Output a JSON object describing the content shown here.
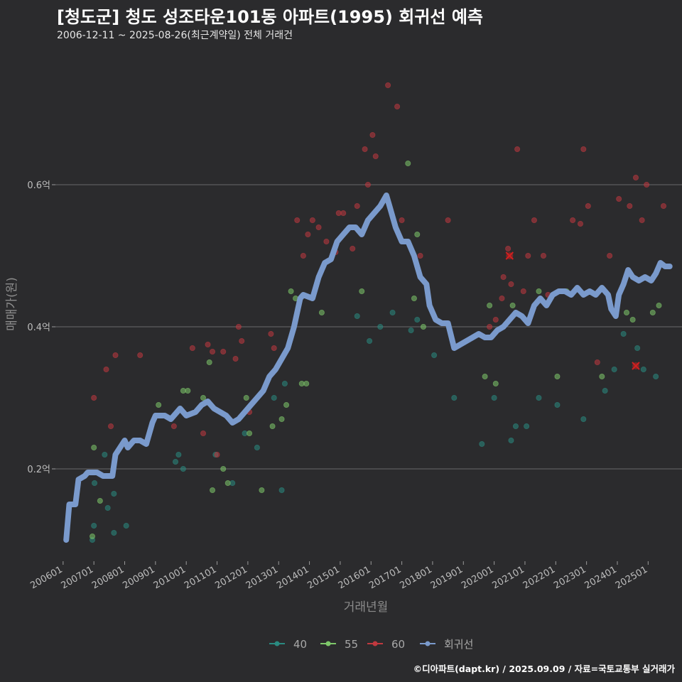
{
  "header": {
    "title": "[청도군] 청도 성조타운101동 아파트(1995) 회귀선 예측",
    "subtitle": "2006-12-11 ~ 2025-08-26(최근계약일) 전체 거래건"
  },
  "caption": "©디아파트(dapt.kr) / 2025.09.09 / 자료=국토교통부 실거래가",
  "colors": {
    "s40": "#2a8a80",
    "s55": "#7ec86a",
    "s60": "#c0393f",
    "reg": "#7a9acc",
    "grid": "#6a6a6a",
    "marker": "#d21f1f"
  },
  "chart_data": {
    "type": "scatter",
    "title": "[청도군] 청도 성조타운101동 아파트(1995) 회귀선 예측",
    "xlabel": "거래년월",
    "ylabel": "매매가(원)",
    "xlim": [
      2005.75,
      2026.1
    ],
    "ylim": [
      0.07,
      0.79
    ],
    "x_ticks": [
      {
        "v": 2006.0,
        "label": "200601"
      },
      {
        "v": 2007.0,
        "label": "200701"
      },
      {
        "v": 2008.0,
        "label": "200801"
      },
      {
        "v": 2009.0,
        "label": "200901"
      },
      {
        "v": 2010.0,
        "label": "201001"
      },
      {
        "v": 2011.0,
        "label": "201101"
      },
      {
        "v": 2012.0,
        "label": "201201"
      },
      {
        "v": 2013.0,
        "label": "201301"
      },
      {
        "v": 2014.0,
        "label": "201401"
      },
      {
        "v": 2015.0,
        "label": "201501"
      },
      {
        "v": 2016.0,
        "label": "201601"
      },
      {
        "v": 2017.0,
        "label": "201701"
      },
      {
        "v": 2018.0,
        "label": "201801"
      },
      {
        "v": 2019.0,
        "label": "201901"
      },
      {
        "v": 2020.0,
        "label": "202001"
      },
      {
        "v": 2021.0,
        "label": "202101"
      },
      {
        "v": 2022.0,
        "label": "202201"
      },
      {
        "v": 2023.0,
        "label": "202301"
      },
      {
        "v": 2024.0,
        "label": "202401"
      },
      {
        "v": 2025.0,
        "label": "202501"
      }
    ],
    "y_ticks": [
      {
        "v": 0.2,
        "label": "0.2억"
      },
      {
        "v": 0.4,
        "label": "0.4억"
      },
      {
        "v": 0.6,
        "label": "0.6억"
      }
    ],
    "legend": [
      {
        "key": "s40",
        "label": "40"
      },
      {
        "key": "s55",
        "label": "55"
      },
      {
        "key": "s60",
        "label": "60"
      },
      {
        "key": "reg",
        "label": "회귀선"
      }
    ],
    "series": [
      {
        "name": "40",
        "key": "s40",
        "points": [
          [
            2006.95,
            0.1
          ],
          [
            2007.0,
            0.12
          ],
          [
            2007.02,
            0.18
          ],
          [
            2007.35,
            0.22
          ],
          [
            2007.45,
            0.145
          ],
          [
            2007.65,
            0.165
          ],
          [
            2007.65,
            0.11
          ],
          [
            2008.05,
            0.12
          ],
          [
            2009.65,
            0.21
          ],
          [
            2009.75,
            0.22
          ],
          [
            2009.9,
            0.2
          ],
          [
            2010.95,
            0.22
          ],
          [
            2011.5,
            0.18
          ],
          [
            2011.9,
            0.25
          ],
          [
            2012.3,
            0.23
          ],
          [
            2012.85,
            0.3
          ],
          [
            2013.1,
            0.17
          ],
          [
            2013.2,
            0.32
          ],
          [
            2015.55,
            0.415
          ],
          [
            2015.95,
            0.38
          ],
          [
            2016.3,
            0.4
          ],
          [
            2016.7,
            0.42
          ],
          [
            2017.3,
            0.395
          ],
          [
            2017.5,
            0.41
          ],
          [
            2018.05,
            0.36
          ],
          [
            2018.7,
            0.3
          ],
          [
            2019.6,
            0.235
          ],
          [
            2020.0,
            0.3
          ],
          [
            2020.55,
            0.24
          ],
          [
            2020.7,
            0.26
          ],
          [
            2021.05,
            0.26
          ],
          [
            2021.45,
            0.3
          ],
          [
            2022.05,
            0.29
          ],
          [
            2022.9,
            0.27
          ],
          [
            2023.6,
            0.31
          ],
          [
            2023.9,
            0.34
          ],
          [
            2024.2,
            0.39
          ],
          [
            2024.65,
            0.37
          ],
          [
            2024.85,
            0.34
          ],
          [
            2025.25,
            0.33
          ]
        ]
      },
      {
        "name": "55",
        "key": "s55",
        "points": [
          [
            2006.95,
            0.105
          ],
          [
            2007.0,
            0.23
          ],
          [
            2007.2,
            0.155
          ],
          [
            2009.1,
            0.29
          ],
          [
            2009.9,
            0.31
          ],
          [
            2010.05,
            0.31
          ],
          [
            2010.55,
            0.3
          ],
          [
            2010.75,
            0.35
          ],
          [
            2010.85,
            0.17
          ],
          [
            2011.2,
            0.2
          ],
          [
            2011.35,
            0.18
          ],
          [
            2011.95,
            0.3
          ],
          [
            2012.05,
            0.25
          ],
          [
            2012.45,
            0.17
          ],
          [
            2012.8,
            0.26
          ],
          [
            2013.1,
            0.27
          ],
          [
            2013.25,
            0.29
          ],
          [
            2013.4,
            0.45
          ],
          [
            2013.55,
            0.44
          ],
          [
            2013.75,
            0.32
          ],
          [
            2013.9,
            0.32
          ],
          [
            2014.4,
            0.42
          ],
          [
            2015.7,
            0.45
          ],
          [
            2017.2,
            0.63
          ],
          [
            2017.4,
            0.44
          ],
          [
            2017.5,
            0.53
          ],
          [
            2017.7,
            0.4
          ],
          [
            2019.7,
            0.33
          ],
          [
            2019.85,
            0.43
          ],
          [
            2020.05,
            0.32
          ],
          [
            2020.6,
            0.43
          ],
          [
            2021.45,
            0.45
          ],
          [
            2022.05,
            0.33
          ],
          [
            2022.35,
            0.45
          ],
          [
            2023.5,
            0.33
          ],
          [
            2024.3,
            0.42
          ],
          [
            2024.5,
            0.41
          ],
          [
            2025.15,
            0.42
          ],
          [
            2025.35,
            0.43
          ]
        ]
      },
      {
        "name": "60",
        "key": "s60",
        "points": [
          [
            2007.0,
            0.3
          ],
          [
            2007.4,
            0.34
          ],
          [
            2007.55,
            0.26
          ],
          [
            2007.7,
            0.36
          ],
          [
            2008.5,
            0.36
          ],
          [
            2009.6,
            0.26
          ],
          [
            2010.2,
            0.37
          ],
          [
            2010.55,
            0.25
          ],
          [
            2010.7,
            0.375
          ],
          [
            2010.85,
            0.365
          ],
          [
            2011.0,
            0.22
          ],
          [
            2011.2,
            0.365
          ],
          [
            2011.6,
            0.355
          ],
          [
            2011.7,
            0.4
          ],
          [
            2011.8,
            0.38
          ],
          [
            2012.05,
            0.28
          ],
          [
            2012.75,
            0.39
          ],
          [
            2012.85,
            0.37
          ],
          [
            2013.6,
            0.55
          ],
          [
            2013.8,
            0.5
          ],
          [
            2013.95,
            0.53
          ],
          [
            2014.1,
            0.55
          ],
          [
            2014.3,
            0.54
          ],
          [
            2014.55,
            0.52
          ],
          [
            2014.85,
            0.505
          ],
          [
            2014.95,
            0.56
          ],
          [
            2015.1,
            0.56
          ],
          [
            2015.4,
            0.51
          ],
          [
            2015.55,
            0.57
          ],
          [
            2015.8,
            0.65
          ],
          [
            2015.9,
            0.6
          ],
          [
            2016.05,
            0.67
          ],
          [
            2016.15,
            0.64
          ],
          [
            2016.55,
            0.74
          ],
          [
            2016.85,
            0.71
          ],
          [
            2017.0,
            0.55
          ],
          [
            2017.6,
            0.5
          ],
          [
            2018.5,
            0.55
          ],
          [
            2020.3,
            0.47
          ],
          [
            2020.45,
            0.51
          ],
          [
            2020.55,
            0.46
          ],
          [
            2020.75,
            0.65
          ],
          [
            2020.95,
            0.45
          ],
          [
            2021.1,
            0.5
          ],
          [
            2021.3,
            0.55
          ],
          [
            2021.6,
            0.5
          ],
          [
            2021.75,
            0.445
          ],
          [
            2022.55,
            0.55
          ],
          [
            2022.8,
            0.545
          ],
          [
            2022.9,
            0.65
          ],
          [
            2023.05,
            0.57
          ],
          [
            2023.35,
            0.35
          ],
          [
            2023.75,
            0.5
          ],
          [
            2024.05,
            0.58
          ],
          [
            2024.4,
            0.57
          ],
          [
            2024.6,
            0.61
          ],
          [
            2024.8,
            0.55
          ],
          [
            2024.95,
            0.6
          ],
          [
            2025.5,
            0.57
          ],
          [
            2019.85,
            0.4
          ],
          [
            2020.05,
            0.41
          ],
          [
            2020.25,
            0.44
          ]
        ]
      }
    ],
    "regression": [
      [
        2006.1,
        0.1
      ],
      [
        2006.2,
        0.15
      ],
      [
        2006.4,
        0.15
      ],
      [
        2006.5,
        0.185
      ],
      [
        2006.7,
        0.19
      ],
      [
        2006.8,
        0.195
      ],
      [
        2007.1,
        0.195
      ],
      [
        2007.3,
        0.19
      ],
      [
        2007.6,
        0.19
      ],
      [
        2007.7,
        0.22
      ],
      [
        2007.85,
        0.23
      ],
      [
        2008.0,
        0.24
      ],
      [
        2008.1,
        0.23
      ],
      [
        2008.3,
        0.24
      ],
      [
        2008.5,
        0.24
      ],
      [
        2008.7,
        0.235
      ],
      [
        2008.9,
        0.265
      ],
      [
        2009.0,
        0.275
      ],
      [
        2009.3,
        0.275
      ],
      [
        2009.5,
        0.27
      ],
      [
        2009.7,
        0.28
      ],
      [
        2009.8,
        0.285
      ],
      [
        2010.0,
        0.275
      ],
      [
        2010.3,
        0.28
      ],
      [
        2010.5,
        0.29
      ],
      [
        2010.7,
        0.295
      ],
      [
        2010.9,
        0.285
      ],
      [
        2011.1,
        0.28
      ],
      [
        2011.3,
        0.275
      ],
      [
        2011.5,
        0.265
      ],
      [
        2011.7,
        0.27
      ],
      [
        2011.9,
        0.28
      ],
      [
        2012.1,
        0.29
      ],
      [
        2012.3,
        0.3
      ],
      [
        2012.5,
        0.31
      ],
      [
        2012.7,
        0.33
      ],
      [
        2012.9,
        0.34
      ],
      [
        2013.1,
        0.355
      ],
      [
        2013.3,
        0.37
      ],
      [
        2013.5,
        0.4
      ],
      [
        2013.7,
        0.44
      ],
      [
        2013.8,
        0.445
      ],
      [
        2014.1,
        0.44
      ],
      [
        2014.3,
        0.47
      ],
      [
        2014.5,
        0.49
      ],
      [
        2014.7,
        0.495
      ],
      [
        2014.9,
        0.52
      ],
      [
        2015.1,
        0.53
      ],
      [
        2015.3,
        0.54
      ],
      [
        2015.5,
        0.54
      ],
      [
        2015.7,
        0.53
      ],
      [
        2015.9,
        0.55
      ],
      [
        2016.1,
        0.56
      ],
      [
        2016.3,
        0.57
      ],
      [
        2016.5,
        0.585
      ],
      [
        2016.6,
        0.57
      ],
      [
        2016.8,
        0.54
      ],
      [
        2017.0,
        0.52
      ],
      [
        2017.2,
        0.52
      ],
      [
        2017.4,
        0.5
      ],
      [
        2017.6,
        0.47
      ],
      [
        2017.8,
        0.46
      ],
      [
        2017.9,
        0.43
      ],
      [
        2018.1,
        0.41
      ],
      [
        2018.3,
        0.405
      ],
      [
        2018.5,
        0.405
      ],
      [
        2018.7,
        0.37
      ],
      [
        2018.9,
        0.375
      ],
      [
        2019.1,
        0.38
      ],
      [
        2019.3,
        0.385
      ],
      [
        2019.5,
        0.39
      ],
      [
        2019.7,
        0.385
      ],
      [
        2019.9,
        0.385
      ],
      [
        2020.1,
        0.395
      ],
      [
        2020.3,
        0.4
      ],
      [
        2020.5,
        0.41
      ],
      [
        2020.7,
        0.42
      ],
      [
        2020.9,
        0.415
      ],
      [
        2021.1,
        0.405
      ],
      [
        2021.3,
        0.43
      ],
      [
        2021.5,
        0.44
      ],
      [
        2021.7,
        0.43
      ],
      [
        2021.9,
        0.445
      ],
      [
        2022.1,
        0.45
      ],
      [
        2022.3,
        0.45
      ],
      [
        2022.5,
        0.445
      ],
      [
        2022.7,
        0.455
      ],
      [
        2022.9,
        0.445
      ],
      [
        2023.1,
        0.45
      ],
      [
        2023.3,
        0.445
      ],
      [
        2023.5,
        0.455
      ],
      [
        2023.7,
        0.445
      ],
      [
        2023.8,
        0.425
      ],
      [
        2023.95,
        0.415
      ],
      [
        2024.05,
        0.445
      ],
      [
        2024.2,
        0.46
      ],
      [
        2024.35,
        0.48
      ],
      [
        2024.5,
        0.47
      ],
      [
        2024.7,
        0.465
      ],
      [
        2024.9,
        0.47
      ],
      [
        2025.1,
        0.465
      ],
      [
        2025.25,
        0.475
      ],
      [
        2025.4,
        0.49
      ],
      [
        2025.55,
        0.485
      ],
      [
        2025.7,
        0.485
      ]
    ],
    "markers": [
      [
        2020.5,
        0.5
      ],
      [
        2024.6,
        0.345
      ]
    ]
  }
}
